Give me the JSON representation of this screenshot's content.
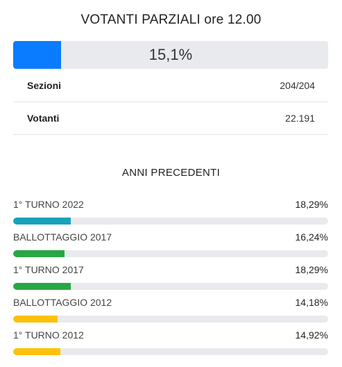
{
  "header": {
    "title": "VOTANTI PARZIALI ore 12.00"
  },
  "turnout": {
    "label": "15,1%",
    "fraction": 0.151,
    "color": "#0a7cff"
  },
  "stats": [
    {
      "label": "Sezioni",
      "value": "204/204"
    },
    {
      "label": "Votanti",
      "value": "22.191"
    }
  ],
  "previous": {
    "title": "ANNI PRECEDENTI",
    "items": [
      {
        "name": "1° TURNO 2022",
        "pct_label": "18,29%",
        "fraction": 0.1829,
        "color": "#17a2b8"
      },
      {
        "name": "BALLOTTAGGIO 2017",
        "pct_label": "16,24%",
        "fraction": 0.1624,
        "color": "#28a745"
      },
      {
        "name": "1° TURNO 2017",
        "pct_label": "18,29%",
        "fraction": 0.1829,
        "color": "#28a745"
      },
      {
        "name": "BALLOTTAGGIO 2012",
        "pct_label": "14,18%",
        "fraction": 0.1418,
        "color": "#ffc107"
      },
      {
        "name": "1° TURNO 2012",
        "pct_label": "14,92%",
        "fraction": 0.1492,
        "color": "#ffc107"
      }
    ]
  }
}
